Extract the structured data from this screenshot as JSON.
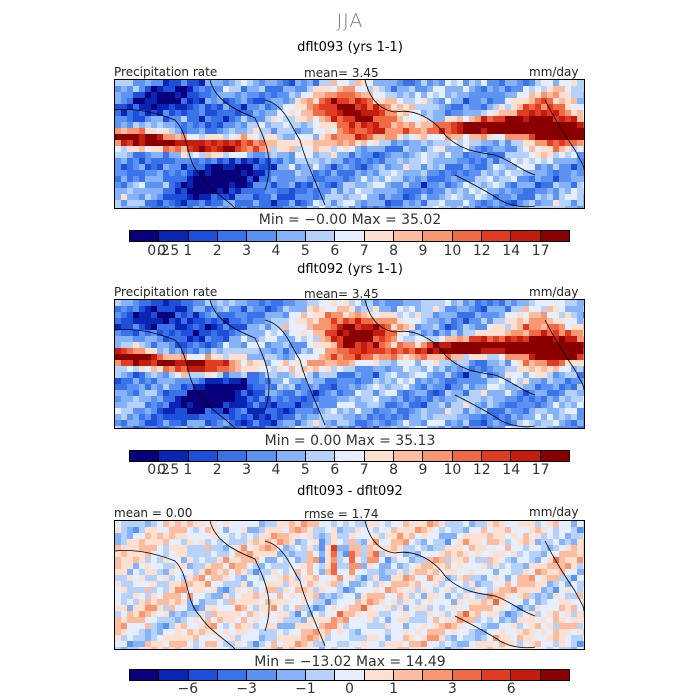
{
  "figure": {
    "season": "JJA"
  },
  "panels": [
    {
      "title": "dflt093 (yrs 1-1)",
      "left_label": "Precipitation rate",
      "center_label": "mean=   3.45",
      "right_label": "mm/day",
      "minmax": "Min =   −0.00  Max =   35.02",
      "colorbar_colors": [
        "#08007a",
        "#0a24b4",
        "#1e4fdb",
        "#3a72ea",
        "#5c92f2",
        "#86b3f7",
        "#b6d2fb",
        "#e6efff",
        "#fde0cf",
        "#fbbca0",
        "#f7966f",
        "#ef6a45",
        "#e03c23",
        "#c41d10",
        "#8a0000"
      ],
      "tick_labels": [
        "0.2",
        "0.5",
        "1",
        "2",
        "3",
        "4",
        "5",
        "6",
        "7",
        "8",
        "9",
        "10",
        "12",
        "14",
        "17"
      ]
    },
    {
      "title": "dflt092 (yrs 1-1)",
      "left_label": "Precipitation rate",
      "center_label": "mean=   3.45",
      "right_label": "mm/day",
      "minmax": "Min =   0.00  Max =   35.13",
      "colorbar_colors": [
        "#08007a",
        "#0a24b4",
        "#1e4fdb",
        "#3a72ea",
        "#5c92f2",
        "#86b3f7",
        "#b6d2fb",
        "#e6efff",
        "#fde0cf",
        "#fbbca0",
        "#f7966f",
        "#ef6a45",
        "#e03c23",
        "#c41d10",
        "#8a0000"
      ],
      "tick_labels": [
        "0.2",
        "0.5",
        "1",
        "2",
        "3",
        "4",
        "5",
        "6",
        "7",
        "8",
        "9",
        "10",
        "12",
        "14",
        "17"
      ]
    },
    {
      "title": "dflt093 - dflt092",
      "left_label": "mean =   0.00",
      "center_label": "rmse =   1.74",
      "right_label": "mm/day",
      "minmax": "Min = −13.02  Max =   14.49",
      "colorbar_colors": [
        "#08007a",
        "#0a24b4",
        "#1e4fdb",
        "#3a72ea",
        "#5c92f2",
        "#86b3f7",
        "#b6d2fb",
        "#e6efff",
        "#fde0cf",
        "#fbbca0",
        "#f7966f",
        "#ef6a45",
        "#e03c23",
        "#c41d10",
        "#8a0000"
      ],
      "tick_labels": [
        "−6",
        "−3",
        "−1",
        "0",
        "1",
        "3",
        "6"
      ]
    }
  ]
}
